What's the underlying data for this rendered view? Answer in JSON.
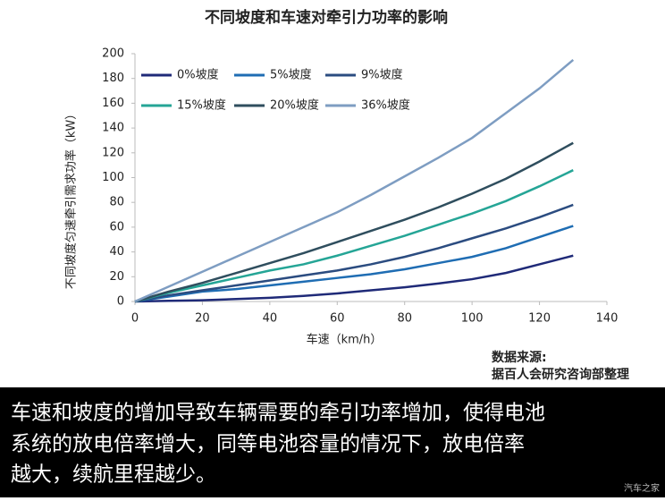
{
  "chart_data": {
    "type": "line",
    "title": "不同坡度和车速对牵引力功率的影响",
    "x_label": "车速（km/h）",
    "y_label": "不同坡度匀速牵引需求功率（kW）",
    "x": [
      0,
      10,
      20,
      30,
      40,
      50,
      60,
      70,
      80,
      90,
      100,
      110,
      120,
      130
    ],
    "series": [
      {
        "name": "0%坡度",
        "color": "#1f2a78",
        "values": [
          0,
          0.5,
          1,
          2,
          3,
          4.5,
          6.5,
          9,
          11.5,
          14.5,
          18,
          23,
          30,
          37
        ]
      },
      {
        "name": "5%坡度",
        "color": "#1f6db3",
        "values": [
          0,
          4,
          8,
          10,
          13,
          16,
          19,
          22,
          26,
          31,
          36,
          43,
          52,
          61
        ]
      },
      {
        "name": "9%坡度",
        "color": "#2b4c80",
        "values": [
          0,
          5,
          9,
          13,
          17,
          21,
          25,
          30,
          36,
          43,
          51,
          59,
          68,
          78
        ]
      },
      {
        "name": "15%坡度",
        "color": "#25a596",
        "values": [
          0,
          7,
          13,
          19,
          25,
          30,
          37,
          45,
          53,
          62,
          71,
          81,
          93,
          106
        ]
      },
      {
        "name": "20%坡度",
        "color": "#2f4e5e",
        "values": [
          0,
          8,
          15,
          23,
          31,
          39,
          48,
          57,
          66,
          76,
          87,
          99,
          113,
          128
        ]
      },
      {
        "name": "36%坡度",
        "color": "#7e9dc2",
        "values": [
          0,
          12,
          24,
          36,
          48,
          60,
          72,
          86,
          101,
          116,
          132,
          152,
          172,
          195
        ]
      }
    ],
    "xlim": [
      0,
      140
    ],
    "xticks": [
      0,
      20,
      40,
      60,
      80,
      100,
      120,
      140
    ],
    "ylim": [
      0,
      200
    ],
    "yticks": [
      0,
      20,
      40,
      60,
      80,
      100,
      120,
      140,
      160,
      180,
      200
    ]
  },
  "source": {
    "label": "数据来源:",
    "text": "据百人会研究咨询部整理"
  },
  "caption": [
    "车速和坡度的增加导致车辆需要的牵引功率增加，使得电池",
    "系统的放电倍率增大，同等电池容量的情况下，放电倍率",
    "越大，续航里程越少。"
  ],
  "watermark": "汽车之家"
}
